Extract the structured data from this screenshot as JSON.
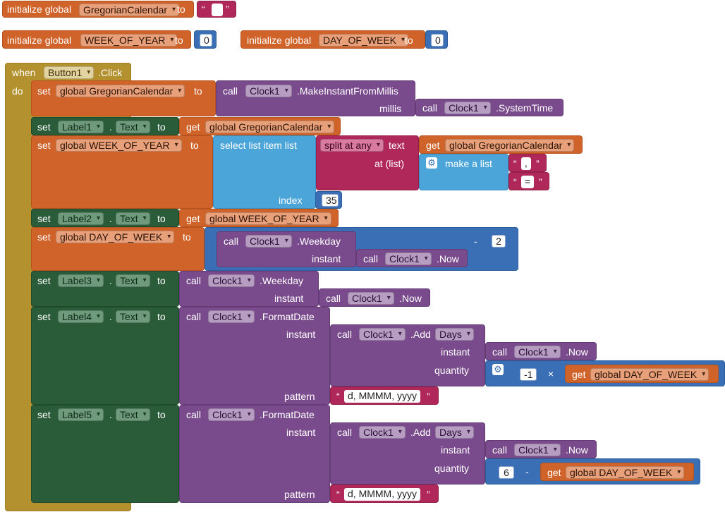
{
  "globals": {
    "init_label": "initialize global",
    "to_label": "to",
    "greg_name": "GregorianCalendar",
    "woy_name": "WEEK_OF_YEAR",
    "woy_value": "0",
    "dow_name": "DAY_OF_WEEK",
    "dow_value": "0"
  },
  "event": {
    "when_label": "when",
    "component": "Button1",
    "event_name": ".Click",
    "do_label": "do"
  },
  "kw": {
    "set": "set",
    "to": "to",
    "call": "call",
    "get": "get",
    "dot": ".",
    "text_prop": "Text",
    "quote_open": "“",
    "quote_close": "”",
    "minus": "-",
    "times": "×"
  },
  "vars": {
    "greg": "global GregorianCalendar",
    "woy": "global WEEK_OF_YEAR",
    "dow": "global DAY_OF_WEEK"
  },
  "clock": {
    "component": "Clock1",
    "make_instant": ".MakeInstantFromMillis",
    "millis_label": "millis",
    "system_time": ".SystemTime",
    "weekday": ".Weekday",
    "instant_label": "instant",
    "now": ".Now",
    "format_date": ".FormatDate",
    "add": ".Add",
    "days": "Days",
    "quantity_label": "quantity",
    "pattern_label": "pattern",
    "pattern_value": "d, MMMM, yyyy"
  },
  "labels": [
    "Label1",
    "Label2",
    "Label3",
    "Label4",
    "Label5"
  ],
  "lists": {
    "select_item": "select list item  list",
    "index_label": "index",
    "index_value": "35",
    "split_label": "split at any",
    "text_label": "text",
    "at_list_label": "at (list)",
    "make_list_label": "make a list",
    "sep1": ",",
    "sep2": "="
  },
  "math": {
    "two": "2",
    "neg_one": "-1",
    "six": "6"
  }
}
